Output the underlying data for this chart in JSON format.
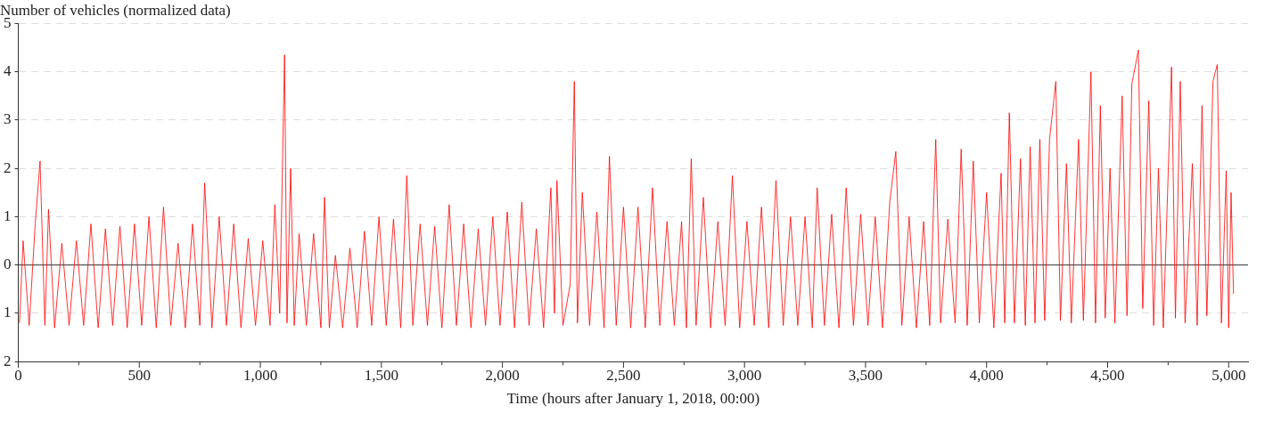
{
  "chart_data": {
    "type": "line",
    "ylabel": "Number of vehicles (normalized data)",
    "xlabel": "Time (hours after January 1, 2018, 00:00)",
    "xlim": [
      0,
      5080
    ],
    "xticks": [
      0,
      {
        "value": 250,
        "label": null
      },
      {
        "value": 500,
        "label": "500"
      },
      {
        "value": 750,
        "label": null
      },
      {
        "value": 1000,
        "label": "1,000"
      },
      {
        "value": 1250,
        "label": null
      },
      {
        "value": 1500,
        "label": "1,500"
      },
      {
        "value": 1750,
        "label": null
      },
      {
        "value": 2000,
        "label": "2,000"
      },
      {
        "value": 2250,
        "label": null
      },
      {
        "value": 2500,
        "label": "2,500"
      },
      {
        "value": 2750,
        "label": null
      },
      {
        "value": 3000,
        "label": "3,000"
      },
      {
        "value": 3250,
        "label": null
      },
      {
        "value": 3500,
        "label": "3,500"
      },
      {
        "value": 3750,
        "label": null
      },
      {
        "value": 4000,
        "label": "4,000"
      },
      {
        "value": 4250,
        "label": null
      },
      {
        "value": 4500,
        "label": "4,500"
      },
      {
        "value": 4750,
        "label": null
      },
      {
        "value": 5000,
        "label": "5,000"
      }
    ],
    "ylim": [
      -2,
      5
    ],
    "yticks": [
      {
        "value": -2,
        "label": "2"
      },
      {
        "value": -1,
        "label": "1"
      },
      0,
      1,
      2,
      3,
      4,
      5
    ],
    "grid": "y",
    "marker": "none",
    "line_style": "solid",
    "ref_lines": [
      {
        "axis": "y",
        "value": 0,
        "color": "#333333"
      }
    ],
    "series": [
      {
        "color": "#ff0000",
        "x": [
          5,
          20,
          45,
          70,
          90,
          110,
          125,
          150,
          180,
          210,
          240,
          270,
          300,
          330,
          360,
          390,
          420,
          450,
          480,
          510,
          540,
          570,
          600,
          630,
          660,
          690,
          720,
          750,
          770,
          800,
          830,
          860,
          890,
          920,
          950,
          980,
          1010,
          1040,
          1060,
          1080,
          1090,
          1100,
          1110,
          1125,
          1140,
          1160,
          1190,
          1220,
          1250,
          1265,
          1285,
          1310,
          1340,
          1370,
          1400,
          1430,
          1460,
          1490,
          1520,
          1550,
          1580,
          1605,
          1630,
          1660,
          1690,
          1720,
          1750,
          1780,
          1810,
          1840,
          1870,
          1900,
          1930,
          1960,
          1990,
          2020,
          2050,
          2080,
          2110,
          2140,
          2170,
          2200,
          2215,
          2225,
          2250,
          2280,
          2297,
          2310,
          2330,
          2360,
          2390,
          2420,
          2442,
          2470,
          2500,
          2530,
          2560,
          2590,
          2620,
          2650,
          2680,
          2710,
          2740,
          2760,
          2780,
          2800,
          2830,
          2860,
          2890,
          2920,
          2950,
          2980,
          3010,
          3040,
          3070,
          3100,
          3130,
          3160,
          3190,
          3220,
          3250,
          3280,
          3300,
          3330,
          3360,
          3390,
          3420,
          3450,
          3480,
          3510,
          3540,
          3570,
          3600,
          3625,
          3650,
          3680,
          3710,
          3740,
          3765,
          3790,
          3810,
          3840,
          3870,
          3895,
          3920,
          3945,
          3970,
          4000,
          4030,
          4060,
          4075,
          4094,
          4115,
          4140,
          4160,
          4180,
          4200,
          4220,
          4240,
          4260,
          4286,
          4305,
          4330,
          4350,
          4380,
          4400,
          4431,
          4450,
          4470,
          4490,
          4510,
          4530,
          4560,
          4580,
          4600,
          4627,
          4645,
          4670,
          4690,
          4710,
          4730,
          4764,
          4780,
          4800,
          4820,
          4850,
          4870,
          4890,
          4910,
          4935,
          4953,
          4970,
          4990,
          5000,
          5010,
          5020
        ],
        "values": [
          -1.2,
          0.5,
          -1.25,
          0.85,
          2.15,
          -1.25,
          1.15,
          -1.3,
          0.45,
          -1.25,
          0.5,
          -1.25,
          0.85,
          -1.3,
          0.75,
          -1.25,
          0.8,
          -1.3,
          0.85,
          -1.25,
          1.0,
          -1.3,
          1.2,
          -1.25,
          0.45,
          -1.3,
          0.85,
          -1.25,
          1.7,
          -1.3,
          1.0,
          -1.25,
          0.85,
          -1.3,
          0.55,
          -1.25,
          0.5,
          -1.25,
          1.25,
          -1.0,
          1.7,
          4.35,
          -1.2,
          2.0,
          -1.25,
          0.65,
          -1.25,
          0.65,
          -1.3,
          1.4,
          -1.3,
          0.2,
          -1.3,
          0.35,
          -1.3,
          0.7,
          -1.25,
          1.0,
          -1.25,
          0.95,
          -1.3,
          1.85,
          -1.25,
          0.85,
          -1.25,
          0.8,
          -1.3,
          1.25,
          -1.25,
          0.85,
          -1.3,
          0.75,
          -1.25,
          1.0,
          -1.25,
          1.1,
          -1.3,
          1.3,
          -1.25,
          0.75,
          -1.3,
          1.6,
          -1.0,
          1.75,
          -1.25,
          -0.4,
          3.8,
          -1.2,
          1.5,
          -1.25,
          1.1,
          -1.3,
          2.25,
          -1.25,
          1.2,
          -1.3,
          1.2,
          -1.3,
          1.6,
          -1.25,
          0.9,
          -1.25,
          0.9,
          -1.3,
          2.2,
          -1.25,
          1.4,
          -1.3,
          0.9,
          -1.25,
          1.85,
          -1.3,
          0.9,
          -1.25,
          1.2,
          -1.3,
          1.75,
          -1.25,
          1.0,
          -1.25,
          1.0,
          -1.3,
          1.6,
          -1.25,
          1.05,
          -1.3,
          1.6,
          -1.25,
          1.05,
          -1.25,
          1.0,
          -1.3,
          1.3,
          2.35,
          -1.25,
          1.0,
          -1.3,
          0.9,
          -1.25,
          2.6,
          -1.2,
          0.95,
          -1.2,
          2.4,
          -1.25,
          2.15,
          -1.2,
          1.5,
          -1.3,
          1.9,
          -1.2,
          3.15,
          -1.2,
          2.2,
          -1.25,
          2.45,
          -1.2,
          2.6,
          -1.15,
          2.6,
          3.8,
          -1.15,
          2.1,
          -1.2,
          2.6,
          -1.15,
          4.0,
          -1.2,
          3.3,
          -1.1,
          2.0,
          -1.2,
          3.5,
          -1.05,
          3.75,
          4.45,
          -0.9,
          3.4,
          -1.25,
          2.0,
          -1.3,
          4.1,
          -1.1,
          3.8,
          -1.2,
          2.1,
          -1.25,
          3.3,
          -1.05,
          3.8,
          4.15,
          -1.2,
          1.95,
          -1.3,
          1.5,
          -0.6
        ]
      }
    ]
  }
}
